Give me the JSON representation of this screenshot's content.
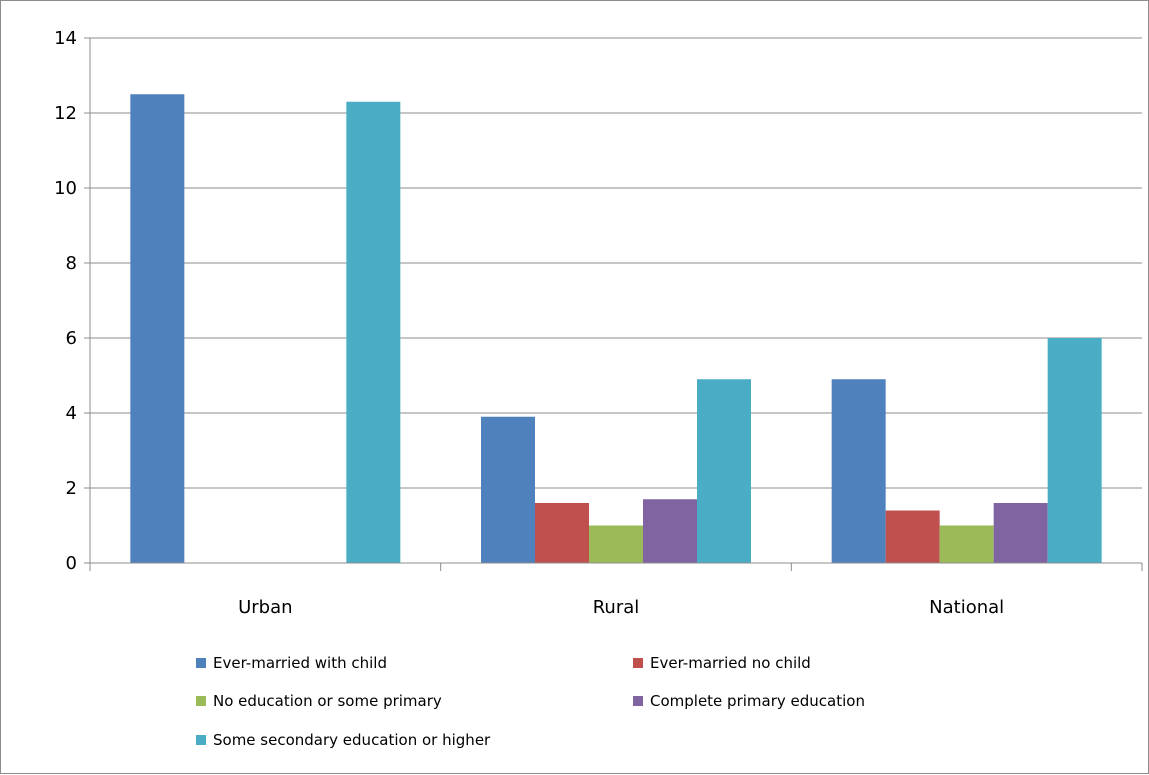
{
  "chart_data": {
    "type": "bar",
    "title": "",
    "xlabel": "",
    "ylabel": "",
    "ylim": [
      0,
      14
    ],
    "yticks": [
      0,
      2,
      4,
      6,
      8,
      10,
      12,
      14
    ],
    "grid": true,
    "legend_position": "bottom",
    "categories": [
      "Urban",
      "Rural",
      "National"
    ],
    "series": [
      {
        "name": "Ever-married with child",
        "color": "#4F81BD",
        "values": [
          12.5,
          3.9,
          4.9
        ]
      },
      {
        "name": "Ever-married no child",
        "color": "#C0504D",
        "values": [
          0,
          1.6,
          1.4
        ]
      },
      {
        "name": "No education or some primary",
        "color": "#9BBB59",
        "values": [
          0,
          1.0,
          1.0
        ]
      },
      {
        "name": "Complete primary education",
        "color": "#8064A2",
        "values": [
          0,
          1.7,
          1.6
        ]
      },
      {
        "name": "Some secondary education or higher",
        "color": "#4BACC6",
        "values": [
          12.3,
          4.9,
          6.0
        ]
      }
    ]
  }
}
